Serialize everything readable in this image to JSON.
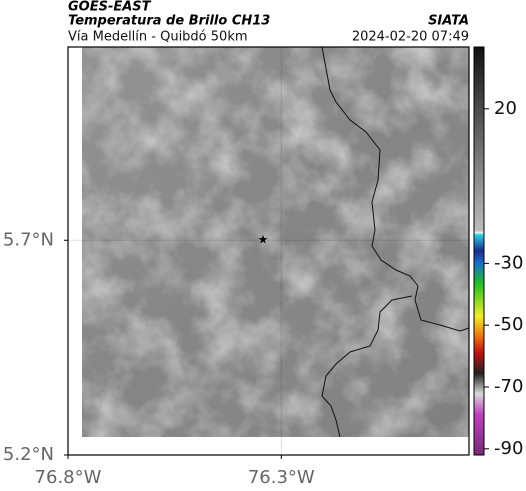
{
  "header": {
    "title": "GOES-EAST",
    "subtitle": "Temperatura de Brillo CH13",
    "source": "SIATA",
    "location": "Vía Medellín - Quibdó 50km",
    "timestamp": "2024-02-20 07:49"
  },
  "map": {
    "xlim": [
      -76.8,
      -75.86
    ],
    "ylim": [
      5.2,
      6.15
    ],
    "xticks": [
      {
        "value": -76.8,
        "label": "76.8°W"
      },
      {
        "value": -76.3,
        "label": "76.3°W"
      }
    ],
    "yticks": [
      {
        "value": 5.2,
        "label": "5.2°N"
      },
      {
        "value": 5.7,
        "label": "5.7°N"
      }
    ],
    "grid": true
  },
  "colorbar": {
    "lim": [
      -92,
      40
    ],
    "ticks": [
      20,
      -30,
      -50,
      -70,
      -90
    ]
  }
}
